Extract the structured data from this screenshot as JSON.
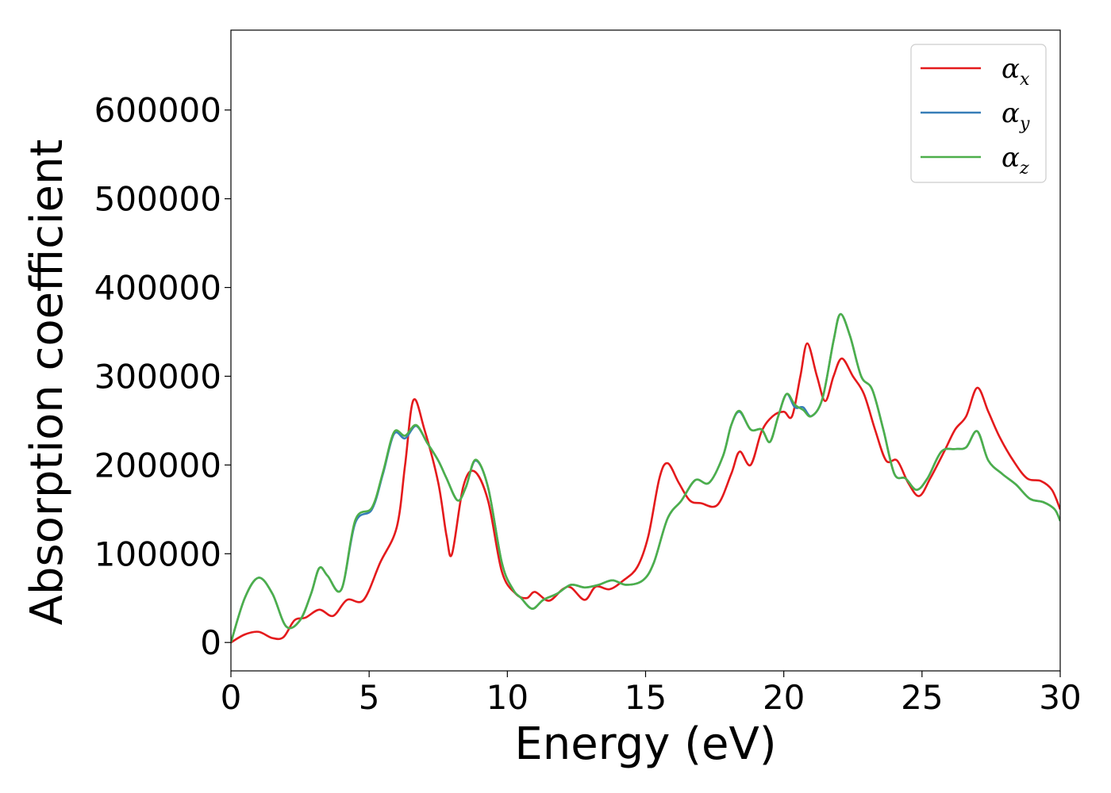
{
  "chart_data": {
    "type": "line",
    "title": "",
    "xlabel": "Energy (eV)",
    "ylabel": "Absorption coefficient",
    "xlim": [
      0,
      30
    ],
    "ylim": [
      -32000,
      690000
    ],
    "xticks": [
      0,
      5,
      10,
      15,
      20,
      25,
      30
    ],
    "yticks": [
      0,
      100000,
      200000,
      300000,
      400000,
      500000,
      600000
    ],
    "grid": false,
    "legend_position": "top-right",
    "series": [
      {
        "name": "α_x",
        "symbol": "α",
        "subscript": "x",
        "color": "#e41a1c",
        "points": [
          [
            0,
            0
          ],
          [
            0.5,
            9000
          ],
          [
            1.0,
            12000
          ],
          [
            1.5,
            5000
          ],
          [
            1.9,
            6000
          ],
          [
            2.3,
            25000
          ],
          [
            2.7,
            28000
          ],
          [
            3.2,
            37000
          ],
          [
            3.7,
            30000
          ],
          [
            4.2,
            48000
          ],
          [
            4.8,
            48000
          ],
          [
            5.4,
            90000
          ],
          [
            6.0,
            130000
          ],
          [
            6.3,
            200000
          ],
          [
            6.6,
            273000
          ],
          [
            7.0,
            240000
          ],
          [
            7.5,
            180000
          ],
          [
            7.8,
            120000
          ],
          [
            8.0,
            100000
          ],
          [
            8.4,
            175000
          ],
          [
            8.8,
            193000
          ],
          [
            9.3,
            160000
          ],
          [
            9.8,
            80000
          ],
          [
            10.3,
            55000
          ],
          [
            10.7,
            50000
          ],
          [
            11.0,
            57000
          ],
          [
            11.5,
            47000
          ],
          [
            12.0,
            60000
          ],
          [
            12.3,
            62000
          ],
          [
            12.8,
            48000
          ],
          [
            13.2,
            63000
          ],
          [
            13.7,
            60000
          ],
          [
            14.2,
            70000
          ],
          [
            14.7,
            85000
          ],
          [
            15.1,
            120000
          ],
          [
            15.5,
            185000
          ],
          [
            15.8,
            202000
          ],
          [
            16.2,
            180000
          ],
          [
            16.6,
            160000
          ],
          [
            17.0,
            157000
          ],
          [
            17.6,
            155000
          ],
          [
            18.1,
            190000
          ],
          [
            18.4,
            215000
          ],
          [
            18.8,
            200000
          ],
          [
            19.2,
            238000
          ],
          [
            19.6,
            255000
          ],
          [
            20.0,
            260000
          ],
          [
            20.3,
            255000
          ],
          [
            20.6,
            300000
          ],
          [
            20.85,
            337000
          ],
          [
            21.2,
            300000
          ],
          [
            21.5,
            272000
          ],
          [
            21.8,
            300000
          ],
          [
            22.1,
            320000
          ],
          [
            22.5,
            300000
          ],
          [
            22.9,
            280000
          ],
          [
            23.3,
            240000
          ],
          [
            23.7,
            205000
          ],
          [
            24.1,
            205000
          ],
          [
            24.5,
            180000
          ],
          [
            24.9,
            165000
          ],
          [
            25.3,
            185000
          ],
          [
            25.8,
            215000
          ],
          [
            26.2,
            240000
          ],
          [
            26.6,
            255000
          ],
          [
            27.0,
            287000
          ],
          [
            27.4,
            260000
          ],
          [
            27.8,
            232000
          ],
          [
            28.3,
            205000
          ],
          [
            28.8,
            185000
          ],
          [
            29.3,
            182000
          ],
          [
            29.7,
            172000
          ],
          [
            30,
            150000
          ]
        ]
      },
      {
        "name": "α_y",
        "symbol": "α",
        "subscript": "y",
        "color": "#377eb8",
        "points": [
          [
            0,
            0
          ],
          [
            0.5,
            50000
          ],
          [
            1.0,
            73000
          ],
          [
            1.5,
            55000
          ],
          [
            2.0,
            18000
          ],
          [
            2.5,
            25000
          ],
          [
            2.9,
            55000
          ],
          [
            3.2,
            84000
          ],
          [
            3.5,
            75000
          ],
          [
            4.0,
            60000
          ],
          [
            4.5,
            135000
          ],
          [
            5.1,
            150000
          ],
          [
            5.5,
            190000
          ],
          [
            5.9,
            235000
          ],
          [
            6.3,
            230000
          ],
          [
            6.7,
            244000
          ],
          [
            7.1,
            225000
          ],
          [
            7.5,
            205000
          ],
          [
            7.8,
            185000
          ],
          [
            8.2,
            160000
          ],
          [
            8.5,
            175000
          ],
          [
            8.85,
            205000
          ],
          [
            9.3,
            175000
          ],
          [
            9.8,
            90000
          ],
          [
            10.2,
            60000
          ],
          [
            10.5,
            50000
          ],
          [
            10.9,
            38000
          ],
          [
            11.3,
            48000
          ],
          [
            11.8,
            55000
          ],
          [
            12.3,
            65000
          ],
          [
            12.8,
            62000
          ],
          [
            13.3,
            65000
          ],
          [
            13.8,
            70000
          ],
          [
            14.3,
            65000
          ],
          [
            14.9,
            70000
          ],
          [
            15.3,
            90000
          ],
          [
            15.8,
            140000
          ],
          [
            16.3,
            160000
          ],
          [
            16.8,
            183000
          ],
          [
            17.3,
            180000
          ],
          [
            17.8,
            210000
          ],
          [
            18.1,
            245000
          ],
          [
            18.4,
            260000
          ],
          [
            18.8,
            240000
          ],
          [
            19.2,
            240000
          ],
          [
            19.5,
            226000
          ],
          [
            19.8,
            255000
          ],
          [
            20.1,
            280000
          ],
          [
            20.4,
            265000
          ],
          [
            20.7,
            265000
          ],
          [
            21.0,
            255000
          ],
          [
            21.4,
            275000
          ],
          [
            21.8,
            340000
          ],
          [
            22.05,
            370000
          ],
          [
            22.4,
            345000
          ],
          [
            22.8,
            300000
          ],
          [
            23.2,
            285000
          ],
          [
            23.6,
            240000
          ],
          [
            24.0,
            190000
          ],
          [
            24.4,
            185000
          ],
          [
            24.8,
            172000
          ],
          [
            25.2,
            185000
          ],
          [
            25.7,
            215000
          ],
          [
            26.2,
            218000
          ],
          [
            26.6,
            220000
          ],
          [
            27.0,
            238000
          ],
          [
            27.4,
            205000
          ],
          [
            27.9,
            190000
          ],
          [
            28.4,
            178000
          ],
          [
            28.9,
            162000
          ],
          [
            29.4,
            158000
          ],
          [
            29.8,
            150000
          ],
          [
            30,
            137000
          ]
        ]
      },
      {
        "name": "α_z",
        "symbol": "α",
        "subscript": "z",
        "color": "#4daf4a",
        "points": [
          [
            0,
            0
          ],
          [
            0.5,
            50000
          ],
          [
            1.0,
            73000
          ],
          [
            1.5,
            55000
          ],
          [
            2.0,
            18000
          ],
          [
            2.5,
            25000
          ],
          [
            2.9,
            55000
          ],
          [
            3.2,
            84000
          ],
          [
            3.5,
            75000
          ],
          [
            4.0,
            60000
          ],
          [
            4.5,
            138000
          ],
          [
            5.1,
            152000
          ],
          [
            5.5,
            192000
          ],
          [
            5.9,
            237000
          ],
          [
            6.3,
            233000
          ],
          [
            6.7,
            245000
          ],
          [
            7.1,
            225000
          ],
          [
            7.5,
            205000
          ],
          [
            7.8,
            185000
          ],
          [
            8.2,
            160000
          ],
          [
            8.5,
            175000
          ],
          [
            8.85,
            206000
          ],
          [
            9.3,
            175000
          ],
          [
            9.8,
            90000
          ],
          [
            10.2,
            60000
          ],
          [
            10.5,
            50000
          ],
          [
            10.9,
            38000
          ],
          [
            11.3,
            48000
          ],
          [
            11.8,
            55000
          ],
          [
            12.3,
            65000
          ],
          [
            12.8,
            62000
          ],
          [
            13.3,
            65000
          ],
          [
            13.8,
            70000
          ],
          [
            14.3,
            65000
          ],
          [
            14.9,
            70000
          ],
          [
            15.3,
            90000
          ],
          [
            15.8,
            140000
          ],
          [
            16.3,
            160000
          ],
          [
            16.8,
            183000
          ],
          [
            17.3,
            180000
          ],
          [
            17.8,
            210000
          ],
          [
            18.1,
            245000
          ],
          [
            18.4,
            261000
          ],
          [
            18.8,
            240000
          ],
          [
            19.2,
            240000
          ],
          [
            19.5,
            226000
          ],
          [
            19.8,
            255000
          ],
          [
            20.1,
            280000
          ],
          [
            20.4,
            268000
          ],
          [
            20.7,
            262000
          ],
          [
            21.0,
            255000
          ],
          [
            21.4,
            275000
          ],
          [
            21.8,
            340000
          ],
          [
            22.05,
            370000
          ],
          [
            22.4,
            345000
          ],
          [
            22.8,
            300000
          ],
          [
            23.2,
            285000
          ],
          [
            23.6,
            240000
          ],
          [
            24.0,
            190000
          ],
          [
            24.4,
            185000
          ],
          [
            24.8,
            172000
          ],
          [
            25.2,
            185000
          ],
          [
            25.7,
            215000
          ],
          [
            26.2,
            218000
          ],
          [
            26.6,
            220000
          ],
          [
            27.0,
            238000
          ],
          [
            27.4,
            205000
          ],
          [
            27.9,
            190000
          ],
          [
            28.4,
            178000
          ],
          [
            28.9,
            162000
          ],
          [
            29.4,
            158000
          ],
          [
            29.8,
            150000
          ],
          [
            30,
            137000
          ]
        ]
      }
    ]
  }
}
